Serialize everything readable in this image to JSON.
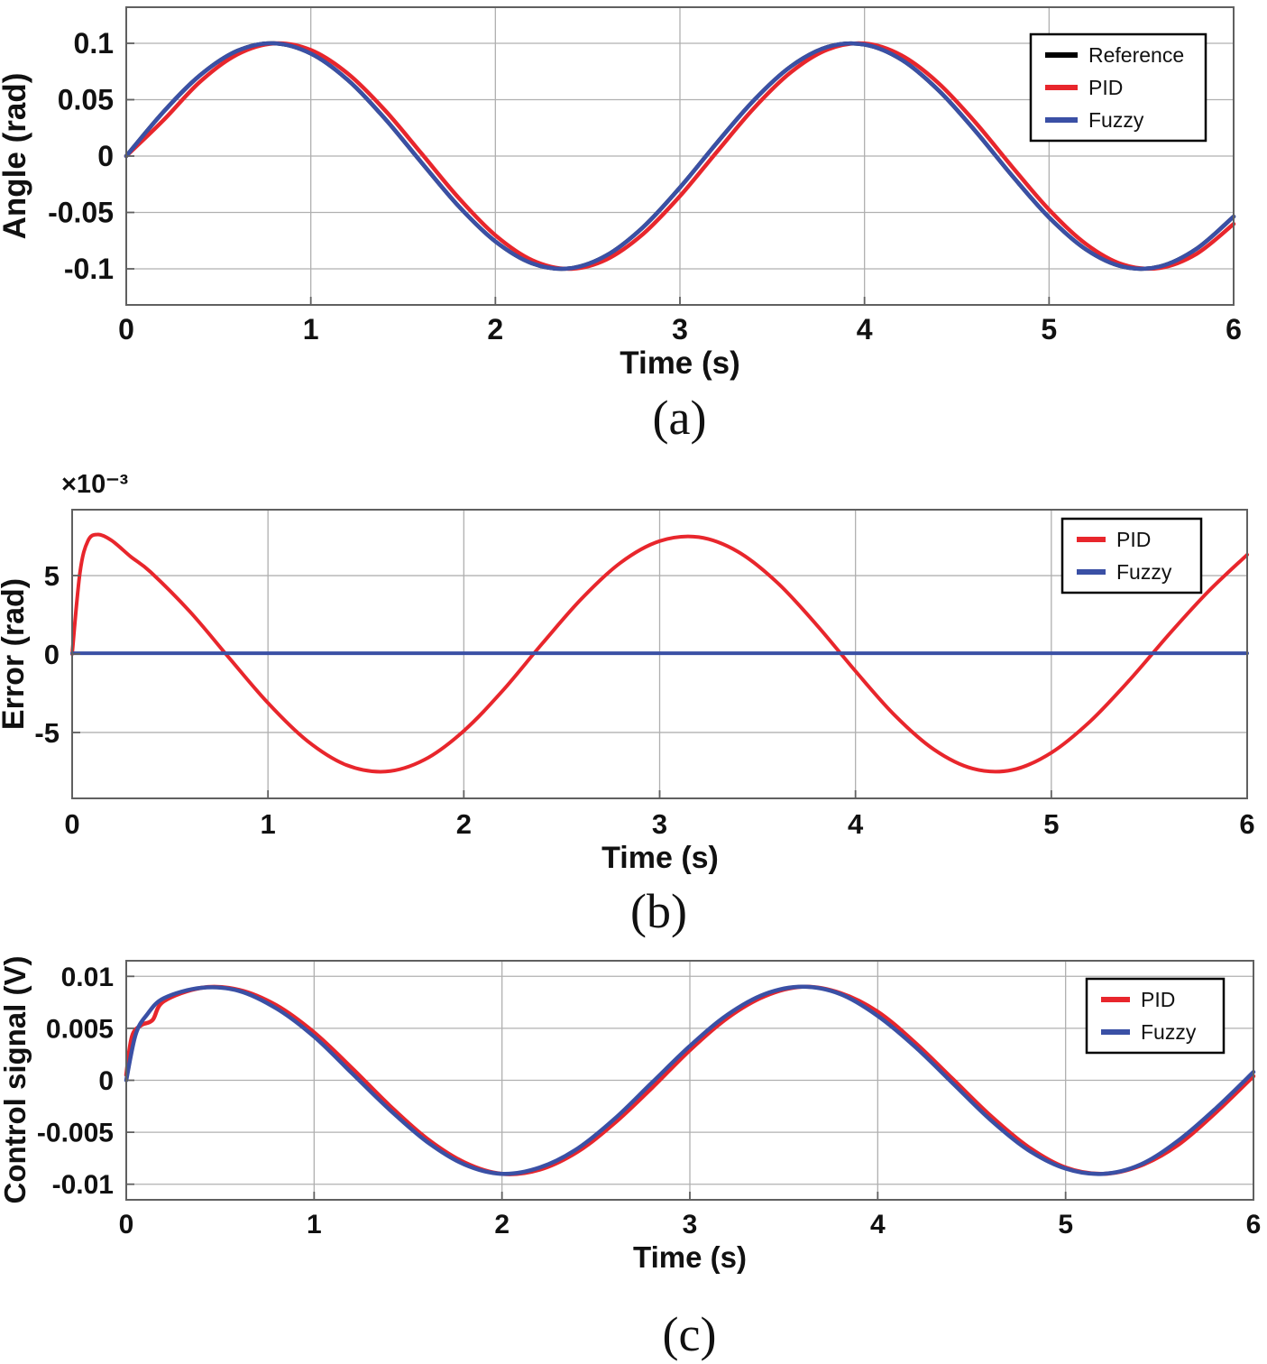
{
  "colors": {
    "reference": "#000000",
    "pid": "#e8262c",
    "fuzzy": "#3a50a5",
    "grid": "#b0b0b0",
    "box": "#606060",
    "text": "#111111"
  },
  "chart_data": [
    {
      "id": "a",
      "type": "line",
      "caption": "(a)",
      "xlabel": "Time (s)",
      "ylabel": "Angle (rad)",
      "xlim": [
        0,
        6
      ],
      "ylim": [
        -0.132,
        0.132
      ],
      "xticks": [
        0,
        1,
        2,
        3,
        4,
        5,
        6
      ],
      "xtick_labels": [
        "0",
        "1",
        "2",
        "3",
        "4",
        "5",
        "6"
      ],
      "yticks": [
        0.1,
        0.05,
        0,
        -0.05,
        -0.1
      ],
      "ytick_labels": [
        "0.1",
        "0.05",
        "0",
        "-0.05",
        "-0.1"
      ],
      "grid": true,
      "legend": {
        "position": "top-right",
        "entries": [
          {
            "label": "Reference",
            "color_key": "reference"
          },
          {
            "label": "PID",
            "color_key": "pid"
          },
          {
            "label": "Fuzzy",
            "color_key": "fuzzy"
          }
        ]
      },
      "x": [
        0,
        0.2,
        0.4,
        0.6,
        0.8,
        1,
        1.2,
        1.4,
        1.6,
        1.8,
        2,
        2.2,
        2.4,
        2.6,
        2.8,
        3,
        3.2,
        3.4,
        3.6,
        3.8,
        4,
        4.2,
        4.4,
        4.6,
        4.8,
        5,
        5.2,
        5.4,
        5.6,
        5.8,
        6
      ],
      "series": [
        {
          "name": "Reference",
          "color_key": "reference",
          "y": [
            0,
            0.0389,
            0.0717,
            0.0932,
            0.1,
            0.0909,
            0.0675,
            0.0335,
            -0.0058,
            -0.0443,
            -0.0757,
            -0.0952,
            -0.0996,
            -0.0883,
            -0.0631,
            -0.0279,
            0.0117,
            0.0494,
            0.0794,
            0.0968,
            0.0989,
            0.0855,
            0.0585,
            0.0223,
            -0.0174,
            -0.0544,
            -0.0828,
            -0.0981,
            -0.0979,
            -0.0821,
            -0.0537
          ]
        },
        {
          "name": "PID",
          "color_key": "pid",
          "y": [
            0,
            0.0315,
            0.0659,
            0.09,
            0.0999,
            0.094,
            0.0732,
            0.041,
            0.0022,
            -0.0369,
            -0.0702,
            -0.0924,
            -0.1,
            -0.0918,
            -0.0691,
            -0.0355,
            0.0037,
            0.0423,
            0.0742,
            0.0945,
            0.0998,
            0.0893,
            0.0648,
            0.03,
            -0.0095,
            -0.0475,
            -0.078,
            -0.0962,
            -0.0992,
            -0.0866,
            -0.0602
          ]
        },
        {
          "name": "Fuzzy",
          "color_key": "fuzzy",
          "y": [
            0,
            0.0389,
            0.0717,
            0.0932,
            0.1,
            0.0909,
            0.0675,
            0.0335,
            -0.0058,
            -0.0443,
            -0.0757,
            -0.0952,
            -0.0996,
            -0.0883,
            -0.0631,
            -0.0279,
            0.0117,
            0.0494,
            0.0794,
            0.0968,
            0.0989,
            0.0855,
            0.0585,
            0.0223,
            -0.0174,
            -0.0544,
            -0.0828,
            -0.0981,
            -0.0979,
            -0.0821,
            -0.0537
          ]
        }
      ]
    },
    {
      "id": "b",
      "type": "line",
      "caption": "(b)",
      "xlabel": "Time (s)",
      "ylabel": "Error (rad)",
      "y_multiplier_label": "×10⁻³",
      "xlim": [
        0,
        6
      ],
      "ylim": [
        -9.2,
        9.2
      ],
      "xticks": [
        0,
        1,
        2,
        3,
        4,
        5,
        6
      ],
      "xtick_labels": [
        "0",
        "1",
        "2",
        "3",
        "4",
        "5",
        "6"
      ],
      "yticks": [
        5,
        0,
        -5
      ],
      "ytick_labels": [
        "5",
        "0",
        "-5"
      ],
      "grid": true,
      "legend": {
        "position": "top-right",
        "entries": [
          {
            "label": "PID",
            "color_key": "pid"
          },
          {
            "label": "Fuzzy",
            "color_key": "fuzzy"
          }
        ]
      },
      "series": [
        {
          "name": "PID",
          "color_key": "pid",
          "x": [
            0,
            0.04,
            0.08,
            0.13,
            0.2,
            0.3,
            0.4,
            0.6,
            0.8,
            1,
            1.2,
            1.4,
            1.6,
            1.8,
            2,
            2.2,
            2.4,
            2.6,
            2.8,
            3,
            3.2,
            3.4,
            3.6,
            3.8,
            4,
            4.2,
            4.4,
            4.6,
            4.8,
            5,
            5.2,
            5.4,
            5.6,
            5.8,
            6
          ],
          "y": [
            0,
            5.2,
            7.2,
            7.62,
            7.25,
            6.2,
            5.23,
            2.72,
            -0.22,
            -3.12,
            -5.53,
            -7.07,
            -7.49,
            -6.73,
            -4.9,
            -2.31,
            0.66,
            3.51,
            5.82,
            7.2,
            7.45,
            6.52,
            4.56,
            1.88,
            -1.09,
            -3.9,
            -6.08,
            -7.31,
            -7.39,
            -6.29,
            -4.27,
            -1.65,
            1.24,
            3.97,
            6.33
          ]
        },
        {
          "name": "Fuzzy",
          "color_key": "fuzzy",
          "x": [
            0,
            6
          ],
          "y": [
            0.05,
            0.05
          ]
        }
      ]
    },
    {
      "id": "c",
      "type": "line",
      "caption": "(c)",
      "xlabel": "Time (s)",
      "ylabel": "Control signal (V)",
      "xlim": [
        0,
        6
      ],
      "ylim": [
        -0.0115,
        0.0115
      ],
      "xticks": [
        0,
        1,
        2,
        3,
        4,
        5,
        6
      ],
      "xtick_labels": [
        "0",
        "1",
        "2",
        "3",
        "4",
        "5",
        "6"
      ],
      "yticks": [
        0.01,
        0.005,
        0,
        -0.005,
        -0.01
      ],
      "ytick_labels": [
        "0.01",
        "0.005",
        "0",
        "-0.005",
        "-0.01"
      ],
      "grid": true,
      "legend": {
        "position": "top-right",
        "entries": [
          {
            "label": "PID",
            "color_key": "pid"
          },
          {
            "label": "Fuzzy",
            "color_key": "fuzzy"
          }
        ]
      },
      "series": [
        {
          "name": "PID",
          "color_key": "pid",
          "x": [
            0,
            0.03,
            0.08,
            0.14,
            0.2,
            0.4,
            0.6,
            0.8,
            1,
            1.2,
            1.4,
            1.6,
            1.8,
            2,
            2.2,
            2.4,
            2.6,
            2.8,
            3,
            3.2,
            3.4,
            3.6,
            3.8,
            4,
            4.2,
            4.4,
            4.6,
            4.8,
            5,
            5.2,
            5.4,
            5.6,
            5.8,
            6
          ],
          "y": [
            0.0005,
            0.0042,
            0.0053,
            0.0058,
            0.0076,
            0.0089,
            0.0087,
            0.0072,
            0.0046,
            0.0012,
            -0.0024,
            -0.0056,
            -0.0079,
            -0.009,
            -0.0086,
            -0.0069,
            -0.0041,
            -0.0007,
            0.0029,
            0.006,
            0.0081,
            0.009,
            0.0084,
            0.0066,
            0.0036,
            0.0001,
            -0.0034,
            -0.0064,
            -0.0084,
            -0.009,
            -0.0082,
            -0.0062,
            -0.0031,
            0.0004
          ]
        },
        {
          "name": "Fuzzy",
          "color_key": "fuzzy",
          "x": [
            0,
            0.05,
            0.11,
            0.2,
            0.4,
            0.6,
            0.8,
            1,
            1.2,
            1.4,
            1.6,
            1.8,
            2,
            2.2,
            2.4,
            2.6,
            2.8,
            3,
            3.2,
            3.4,
            3.6,
            3.8,
            4,
            4.2,
            4.4,
            4.6,
            4.8,
            5,
            5.2,
            5.4,
            5.6,
            5.8,
            6
          ],
          "y": [
            0,
            0.0044,
            0.0063,
            0.0079,
            0.0089,
            0.0086,
            0.0069,
            0.0042,
            0.0007,
            -0.0028,
            -0.0059,
            -0.0081,
            -0.009,
            -0.0084,
            -0.0066,
            -0.0037,
            -0.0002,
            0.0033,
            0.0063,
            0.0083,
            0.009,
            0.0083,
            0.0062,
            0.0032,
            -0.0003,
            -0.0038,
            -0.0067,
            -0.0085,
            -0.009,
            -0.0081,
            -0.0058,
            -0.0027,
            0.0008
          ]
        }
      ]
    }
  ]
}
